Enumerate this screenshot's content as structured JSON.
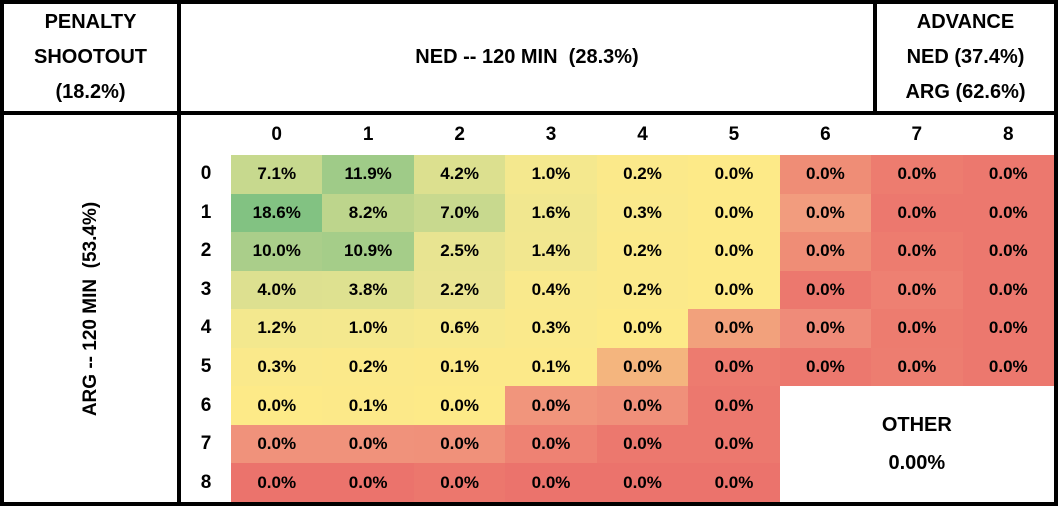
{
  "header": {
    "penalty_box": {
      "line1": "PENALTY",
      "line2": "SHOOTOUT",
      "line3": "(18.2%)"
    },
    "ned_box": {
      "label": "NED -- 120 MIN  (28.3%)"
    },
    "advance_box": {
      "line1": "ADVANCE",
      "line2": "NED (37.4%)",
      "line3": "ARG (62.6%)"
    },
    "arg_box": {
      "label": "ARG -- 120 MIN  (53.4%)"
    }
  },
  "other_box": {
    "label": "OTHER",
    "value": "0.00%"
  },
  "chart_data": {
    "type": "heatmap",
    "title": "World Cup knockout outcome probability matrix: NED goals (columns) vs ARG goals (rows) after 120 minutes",
    "xlabel": "NED -- 120 MIN (28.3%)",
    "ylabel": "ARG -- 120 MIN (53.4%)",
    "unit": "%",
    "legend": "none",
    "grid": "off",
    "columns": [
      "0",
      "1",
      "2",
      "3",
      "4",
      "5",
      "6",
      "7",
      "8"
    ],
    "rows": [
      "0",
      "1",
      "2",
      "3",
      "4",
      "5",
      "6",
      "7",
      "8"
    ],
    "values": [
      [
        7.1,
        11.9,
        4.2,
        1.0,
        0.2,
        0.0,
        0.0,
        0.0,
        0.0
      ],
      [
        18.6,
        8.2,
        7.0,
        1.6,
        0.3,
        0.0,
        0.0,
        0.0,
        0.0
      ],
      [
        10.0,
        10.9,
        2.5,
        1.4,
        0.2,
        0.0,
        0.0,
        0.0,
        0.0
      ],
      [
        4.0,
        3.8,
        2.2,
        0.4,
        0.2,
        0.0,
        0.0,
        0.0,
        0.0
      ],
      [
        1.2,
        1.0,
        0.6,
        0.3,
        0.0,
        0.0,
        0.0,
        0.0,
        0.0
      ],
      [
        0.3,
        0.2,
        0.1,
        0.1,
        0.0,
        0.0,
        0.0,
        0.0,
        0.0
      ],
      [
        0.0,
        0.1,
        0.0,
        0.0,
        0.0,
        0.0,
        null,
        null,
        null
      ],
      [
        0.0,
        0.0,
        0.0,
        0.0,
        0.0,
        0.0,
        null,
        null,
        null
      ],
      [
        0.0,
        0.0,
        0.0,
        0.0,
        0.0,
        0.0,
        null,
        null,
        null
      ]
    ],
    "cell_colors": [
      [
        "#c7d98e",
        "#9fcb88",
        "#dce08f",
        "#f4e88e",
        "#fbe98a",
        "#fdea88",
        "#ef8d76",
        "#ed7c6f",
        "#ec786e"
      ],
      [
        "#82c282",
        "#bdd58c",
        "#c8d98e",
        "#f1e78f",
        "#fae98b",
        "#fdea88",
        "#f29c7e",
        "#ec786e",
        "#ec786e"
      ],
      [
        "#aace8a",
        "#a5cd89",
        "#e8e491",
        "#f2e78f",
        "#fbe98a",
        "#fdea88",
        "#ef8d76",
        "#ed7c6f",
        "#ec786e"
      ],
      [
        "#dde090",
        "#dee190",
        "#eae492",
        "#f9e98c",
        "#fbe98a",
        "#fdea88",
        "#ec786e",
        "#ee8072",
        "#ec786e"
      ],
      [
        "#f3e88e",
        "#f4e88e",
        "#f7e98d",
        "#fae98b",
        "#fdea88",
        "#f2a17c",
        "#ef8b79",
        "#ed7c6f",
        "#ec786e"
      ],
      [
        "#fae98b",
        "#fbe98a",
        "#fce989",
        "#fce989",
        "#f4b57e",
        "#ed7b6f",
        "#ec786e",
        "#ed7d70",
        "#ec786e"
      ],
      [
        "#fdea88",
        "#fce989",
        "#fdea88",
        "#f1957c",
        "#f0907a",
        "#ec786e",
        null,
        null,
        null
      ],
      [
        "#f0927b",
        "#f0927b",
        "#f0917a",
        "#ee8273",
        "#ec786e",
        "#ec786e",
        null,
        null,
        null
      ],
      [
        "#eb736c",
        "#eb736c",
        "#ec776d",
        "#eb736c",
        "#eb736c",
        "#eb736c",
        null,
        null,
        null
      ]
    ],
    "merged_region": {
      "label": "OTHER",
      "value": "0.00%",
      "rows": "6-8",
      "columns": "6-8",
      "background": "#ffffff"
    },
    "summary_probabilities": {
      "penalty_shootout": "18.2%",
      "ned_win_120_min": "28.3%",
      "arg_win_120_min": "53.4%",
      "advance_ned": "37.4%",
      "advance_arg": "62.6%",
      "other": "0.00%"
    },
    "colorscale": {
      "high": "#82c282",
      "mid": "#fdea88",
      "low": "#ec786e"
    }
  }
}
